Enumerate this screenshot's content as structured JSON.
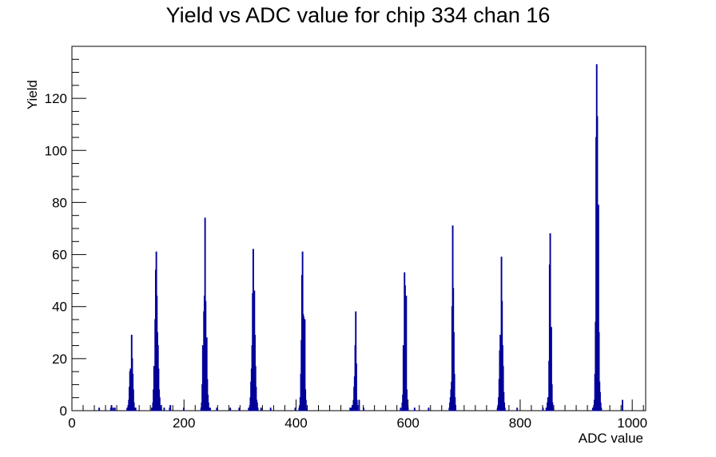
{
  "chart_data": {
    "type": "histogram",
    "title": "Yield vs ADC value for chip 334 chan 16",
    "xlabel": "ADC value",
    "ylabel": "Yield",
    "xlim": [
      0,
      1024
    ],
    "ylim": [
      0,
      140
    ],
    "x_major_ticks": [
      0,
      200,
      400,
      600,
      800,
      1000
    ],
    "y_major_ticks": [
      0,
      20,
      40,
      60,
      80,
      100,
      120
    ],
    "x_tick_labels": [
      "0",
      "200",
      "400",
      "600",
      "800",
      "1000"
    ],
    "y_tick_labels": [
      "0",
      "20",
      "40",
      "60",
      "80",
      "100",
      "120"
    ],
    "grid": false,
    "line_color": "#000099",
    "series": [
      {
        "points": [
          [
            48,
            1
          ],
          [
            69,
            1
          ],
          [
            70,
            2
          ],
          [
            73,
            1
          ],
          [
            76,
            1
          ],
          [
            98,
            1
          ],
          [
            100,
            2
          ],
          [
            101,
            4
          ],
          [
            102,
            9
          ],
          [
            103,
            15
          ],
          [
            104,
            16
          ],
          [
            105,
            10
          ],
          [
            106,
            29
          ],
          [
            107,
            20
          ],
          [
            108,
            14
          ],
          [
            109,
            8
          ],
          [
            110,
            3
          ],
          [
            111,
            1
          ],
          [
            113,
            1
          ],
          [
            142,
            1
          ],
          [
            144,
            3
          ],
          [
            145,
            8
          ],
          [
            146,
            17
          ],
          [
            147,
            10
          ],
          [
            148,
            35
          ],
          [
            149,
            54
          ],
          [
            150,
            61
          ],
          [
            151,
            44
          ],
          [
            152,
            30
          ],
          [
            153,
            25
          ],
          [
            154,
            16
          ],
          [
            155,
            8
          ],
          [
            156,
            5
          ],
          [
            157,
            2
          ],
          [
            158,
            1
          ],
          [
            164,
            1
          ],
          [
            174,
            1
          ],
          [
            175,
            2
          ],
          [
            199,
            1
          ],
          [
            230,
            1
          ],
          [
            231,
            3
          ],
          [
            232,
            10
          ],
          [
            233,
            25
          ],
          [
            234,
            17
          ],
          [
            235,
            38
          ],
          [
            236,
            44
          ],
          [
            237,
            74
          ],
          [
            238,
            42
          ],
          [
            239,
            17
          ],
          [
            240,
            28
          ],
          [
            241,
            12
          ],
          [
            242,
            6
          ],
          [
            243,
            3
          ],
          [
            244,
            1
          ],
          [
            246,
            1
          ],
          [
            258,
            1
          ],
          [
            282,
            1
          ],
          [
            298,
            1
          ],
          [
            315,
            1
          ],
          [
            317,
            2
          ],
          [
            318,
            5
          ],
          [
            319,
            11
          ],
          [
            320,
            16
          ],
          [
            321,
            25
          ],
          [
            322,
            45
          ],
          [
            323,
            62
          ],
          [
            324,
            35
          ],
          [
            325,
            46
          ],
          [
            326,
            29
          ],
          [
            327,
            17
          ],
          [
            328,
            9
          ],
          [
            329,
            4
          ],
          [
            330,
            3
          ],
          [
            331,
            1
          ],
          [
            337,
            1
          ],
          [
            354,
            1
          ],
          [
            398,
            1
          ],
          [
            405,
            1
          ],
          [
            406,
            2
          ],
          [
            407,
            5
          ],
          [
            408,
            14
          ],
          [
            409,
            27
          ],
          [
            410,
            52
          ],
          [
            411,
            61
          ],
          [
            412,
            37
          ],
          [
            413,
            36
          ],
          [
            414,
            22
          ],
          [
            415,
            35
          ],
          [
            416,
            8
          ],
          [
            417,
            4
          ],
          [
            418,
            1
          ],
          [
            496,
            1
          ],
          [
            498,
            1
          ],
          [
            500,
            2
          ],
          [
            502,
            4
          ],
          [
            503,
            9
          ],
          [
            504,
            13
          ],
          [
            505,
            25
          ],
          [
            506,
            38
          ],
          [
            507,
            18
          ],
          [
            508,
            4
          ],
          [
            509,
            2
          ],
          [
            512,
            4
          ],
          [
            520,
            1
          ],
          [
            586,
            1
          ],
          [
            589,
            3
          ],
          [
            590,
            6
          ],
          [
            591,
            25
          ],
          [
            592,
            18
          ],
          [
            593,
            53
          ],
          [
            594,
            48
          ],
          [
            595,
            40
          ],
          [
            596,
            44
          ],
          [
            597,
            8
          ],
          [
            598,
            2
          ],
          [
            599,
            1
          ],
          [
            611,
            1
          ],
          [
            636,
            1
          ],
          [
            673,
            1
          ],
          [
            674,
            3
          ],
          [
            675,
            5
          ],
          [
            676,
            8
          ],
          [
            677,
            11
          ],
          [
            678,
            40
          ],
          [
            679,
            71
          ],
          [
            680,
            47
          ],
          [
            681,
            30
          ],
          [
            682,
            14
          ],
          [
            683,
            5
          ],
          [
            684,
            2
          ],
          [
            759,
            1
          ],
          [
            760,
            2
          ],
          [
            761,
            5
          ],
          [
            762,
            12
          ],
          [
            763,
            23
          ],
          [
            764,
            29
          ],
          [
            765,
            23
          ],
          [
            766,
            59
          ],
          [
            767,
            42
          ],
          [
            768,
            25
          ],
          [
            769,
            17
          ],
          [
            770,
            7
          ],
          [
            771,
            3
          ],
          [
            772,
            1
          ],
          [
            794,
            1
          ],
          [
            840,
            1
          ],
          [
            846,
            1
          ],
          [
            848,
            3
          ],
          [
            849,
            5
          ],
          [
            850,
            4
          ],
          [
            851,
            19
          ],
          [
            852,
            56
          ],
          [
            853,
            68
          ],
          [
            854,
            21
          ],
          [
            855,
            32
          ],
          [
            856,
            10
          ],
          [
            857,
            3
          ],
          [
            858,
            1
          ],
          [
            929,
            1
          ],
          [
            931,
            2
          ],
          [
            932,
            4
          ],
          [
            933,
            14
          ],
          [
            934,
            34
          ],
          [
            935,
            105
          ],
          [
            936,
            133
          ],
          [
            937,
            113
          ],
          [
            938,
            50
          ],
          [
            939,
            79
          ],
          [
            940,
            30
          ],
          [
            941,
            11
          ],
          [
            942,
            7
          ],
          [
            943,
            3
          ],
          [
            944,
            1
          ],
          [
            982,
            4
          ]
        ]
      }
    ]
  }
}
